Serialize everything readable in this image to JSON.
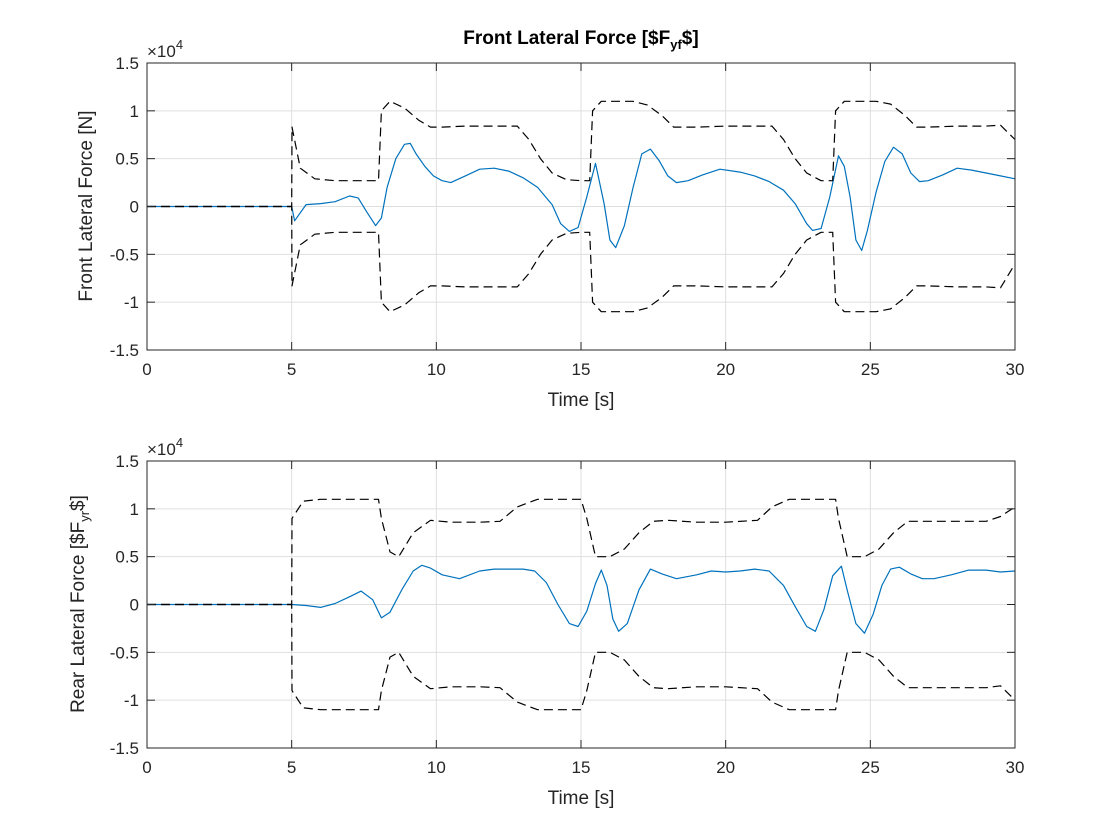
{
  "chart_data": [
    {
      "type": "line",
      "title": "Front Lateral Force [$F",
      "title_sub": "yf",
      "title_end": "$]",
      "xlabel": "Time [s]",
      "ylabel": "Front Lateral Force [N]",
      "ylabel_sub": "",
      "ylabel_end": "",
      "xlim": [
        0,
        30
      ],
      "ylim": [
        -15000,
        15000
      ],
      "y_exponent_label": "×10",
      "y_exponent_power": "4",
      "xticks": [
        0,
        5,
        10,
        15,
        20,
        25,
        30
      ],
      "xtick_labels": [
        "0",
        "5",
        "10",
        "15",
        "20",
        "25",
        "30"
      ],
      "yticks": [
        -1.5,
        -1,
        -0.5,
        0,
        0.5,
        1,
        1.5
      ],
      "ytick_labels": [
        "-1.5",
        "-1",
        "-0.5",
        "0",
        "0.5",
        "1",
        "1.5"
      ],
      "grid": true,
      "colors": {
        "signal": "#0072BD",
        "bounds": "#000000"
      },
      "series": [
        {
          "style": "solid",
          "x": [
            0,
            5,
            5.1,
            5.5,
            6,
            6.5,
            7,
            7.3,
            7.6,
            7.9,
            8.1,
            8.3,
            8.6,
            8.9,
            9.1,
            9.3,
            9.6,
            9.9,
            10.2,
            10.5,
            11,
            11.5,
            12,
            12.5,
            13,
            13.5,
            14,
            14.3,
            14.6,
            14.9,
            15.2,
            15.5,
            15.8,
            16,
            16.2,
            16.5,
            16.8,
            17.1,
            17.4,
            17.7,
            18,
            18.3,
            18.7,
            19.2,
            19.8,
            20.5,
            21,
            21.5,
            22,
            22.4,
            22.8,
            23,
            23.3,
            23.6,
            23.9,
            24.1,
            24.3,
            24.5,
            24.7,
            24.9,
            25.2,
            25.5,
            25.8,
            26.1,
            26.4,
            26.7,
            27,
            27.5,
            28,
            28.5,
            29,
            29.5,
            30
          ],
          "y": [
            0,
            0,
            -1500,
            200,
            300,
            500,
            1100,
            900,
            -600,
            -2000,
            -1200,
            2000,
            5000,
            6500,
            6600,
            5500,
            4200,
            3200,
            2700,
            2500,
            3200,
            3900,
            4000,
            3700,
            3000,
            2000,
            200,
            -1800,
            -2600,
            -2200,
            1000,
            4500,
            300,
            -3500,
            -4300,
            -2000,
            2000,
            5500,
            6000,
            4800,
            3200,
            2500,
            2700,
            3300,
            3900,
            3600,
            3200,
            2600,
            1700,
            300,
            -1800,
            -2500,
            -2300,
            1000,
            5300,
            4200,
            1000,
            -3500,
            -4600,
            -2500,
            1500,
            4700,
            6200,
            5500,
            3500,
            2600,
            2700,
            3300,
            4000,
            3800,
            3500,
            3200,
            2900
          ]
        },
        {
          "style": "dashed",
          "x": [
            0,
            5,
            5.01,
            5.3,
            5.8,
            6.5,
            7,
            7.6,
            8,
            8.1,
            8.4,
            8.9,
            9.4,
            9.8,
            10.2,
            11,
            12,
            12.8,
            13.2,
            13.6,
            14,
            14.5,
            15,
            15.3,
            15.4,
            15.7,
            16.2,
            16.8,
            17.3,
            17.8,
            18.2,
            19,
            20,
            21,
            21.6,
            22,
            22.4,
            22.8,
            23.3,
            23.7,
            23.8,
            24.1,
            24.6,
            25.2,
            25.7,
            26.2,
            26.6,
            27,
            28,
            29,
            29.5,
            30
          ],
          "y": [
            0,
            0,
            8300,
            4000,
            2900,
            2700,
            2700,
            2700,
            2700,
            10000,
            11000,
            10300,
            9000,
            8300,
            8300,
            8400,
            8400,
            8400,
            7000,
            5000,
            3500,
            2800,
            2700,
            2700,
            10000,
            11000,
            11000,
            11000,
            10600,
            9500,
            8300,
            8300,
            8400,
            8400,
            8400,
            7000,
            5000,
            3500,
            2700,
            2700,
            10000,
            11000,
            11000,
            11000,
            10700,
            9500,
            8300,
            8300,
            8400,
            8400,
            8500,
            7000
          ]
        },
        {
          "style": "dashed",
          "x": [
            0,
            5,
            5.01,
            5.3,
            5.8,
            6.5,
            7,
            7.6,
            8,
            8.1,
            8.4,
            8.9,
            9.4,
            9.8,
            10.2,
            11,
            12,
            12.8,
            13.2,
            13.6,
            14,
            14.5,
            15,
            15.3,
            15.4,
            15.7,
            16.2,
            16.8,
            17.3,
            17.8,
            18.2,
            19,
            20,
            21,
            21.6,
            22,
            22.4,
            22.8,
            23.3,
            23.7,
            23.8,
            24.1,
            24.6,
            25.2,
            25.7,
            26.2,
            26.6,
            27,
            28,
            29,
            29.5,
            30
          ],
          "y": [
            0,
            0,
            -8300,
            -4000,
            -2900,
            -2700,
            -2700,
            -2700,
            -2700,
            -10000,
            -11000,
            -10300,
            -9000,
            -8300,
            -8300,
            -8400,
            -8400,
            -8400,
            -7000,
            -5000,
            -3500,
            -2800,
            -2700,
            -2700,
            -10000,
            -11000,
            -11000,
            -11000,
            -10600,
            -9500,
            -8300,
            -8300,
            -8400,
            -8400,
            -8400,
            -7000,
            -5000,
            -3500,
            -2700,
            -2700,
            -10000,
            -11000,
            -11000,
            -11000,
            -10700,
            -9500,
            -8300,
            -8300,
            -8400,
            -8400,
            -8500,
            -6000
          ]
        }
      ]
    },
    {
      "type": "line",
      "title": "",
      "title_sub": "",
      "title_end": "",
      "xlabel": "Time [s]",
      "ylabel": "Rear Lateral Force [$F",
      "ylabel_sub": "yr",
      "ylabel_end": "$]",
      "xlim": [
        0,
        30
      ],
      "ylim": [
        -15000,
        15000
      ],
      "y_exponent_label": "×10",
      "y_exponent_power": "4",
      "xticks": [
        0,
        5,
        10,
        15,
        20,
        25,
        30
      ],
      "xtick_labels": [
        "0",
        "5",
        "10",
        "15",
        "20",
        "25",
        "30"
      ],
      "yticks": [
        -1.5,
        -1,
        -0.5,
        0,
        0.5,
        1,
        1.5
      ],
      "ytick_labels": [
        "-1.5",
        "-1",
        "-0.5",
        "0",
        "0.5",
        "1",
        "1.5"
      ],
      "grid": true,
      "colors": {
        "signal": "#0072BD",
        "bounds": "#000000"
      },
      "series": [
        {
          "style": "solid",
          "x": [
            0,
            5,
            5.5,
            6,
            6.5,
            7,
            7.4,
            7.8,
            8.1,
            8.4,
            8.8,
            9.2,
            9.5,
            9.8,
            10.2,
            10.8,
            11.5,
            12,
            12.5,
            13,
            13.4,
            13.8,
            14.2,
            14.6,
            14.9,
            15.2,
            15.5,
            15.7,
            15.9,
            16.1,
            16.3,
            16.6,
            17,
            17.4,
            17.8,
            18.3,
            19,
            19.5,
            20,
            20.5,
            21,
            21.5,
            22,
            22.4,
            22.8,
            23.1,
            23.4,
            23.7,
            24,
            24.2,
            24.5,
            24.8,
            25.1,
            25.4,
            25.7,
            26,
            26.4,
            26.8,
            27.2,
            27.8,
            28.4,
            29,
            29.5,
            30
          ],
          "y": [
            0,
            0,
            -100,
            -300,
            100,
            800,
            1400,
            500,
            -1400,
            -800,
            1500,
            3500,
            4100,
            3800,
            3100,
            2700,
            3500,
            3700,
            3700,
            3700,
            3500,
            2300,
            0,
            -2000,
            -2300,
            -700,
            2200,
            3600,
            2000,
            -1500,
            -2800,
            -2000,
            1500,
            3700,
            3200,
            2700,
            3100,
            3500,
            3400,
            3500,
            3700,
            3500,
            2000,
            -200,
            -2300,
            -2800,
            -500,
            3000,
            4000,
            1500,
            -2000,
            -3000,
            -1000,
            2000,
            3700,
            3900,
            3200,
            2700,
            2700,
            3100,
            3600,
            3600,
            3400,
            3500
          ]
        },
        {
          "style": "dashed",
          "x": [
            0,
            5,
            5.01,
            5.4,
            6,
            7,
            8,
            8.1,
            8.4,
            8.7,
            9.2,
            9.8,
            10.5,
            11.5,
            12.2,
            12.8,
            13.5,
            14.2,
            15,
            15.2,
            15.5,
            16,
            16.5,
            17,
            17.5,
            18,
            19,
            20,
            21.1,
            21.6,
            22.2,
            23,
            23.8,
            23.9,
            24.2,
            24.8,
            25.3,
            25.8,
            26.3,
            27,
            28,
            29,
            29.5,
            30
          ],
          "y": [
            0,
            0,
            9000,
            10800,
            11000,
            11000,
            11000,
            9000,
            5500,
            5000,
            7500,
            8800,
            8600,
            8600,
            8700,
            10200,
            11000,
            11000,
            11000,
            9000,
            5000,
            5000,
            5800,
            7500,
            8700,
            8800,
            8600,
            8600,
            8800,
            10200,
            11000,
            11000,
            11000,
            9000,
            5000,
            5000,
            5800,
            7500,
            8700,
            8700,
            8700,
            8700,
            9200,
            10200
          ]
        },
        {
          "style": "dashed",
          "x": [
            0,
            5,
            5.01,
            5.4,
            6,
            7,
            8,
            8.1,
            8.4,
            8.7,
            9.2,
            9.8,
            10.5,
            11.5,
            12.2,
            12.8,
            13.5,
            14.2,
            15,
            15.2,
            15.5,
            16,
            16.5,
            17,
            17.5,
            18,
            19,
            20,
            21.1,
            21.6,
            22.2,
            23,
            23.8,
            23.9,
            24.2,
            24.8,
            25.3,
            25.8,
            26.3,
            27,
            28,
            29,
            29.5,
            30
          ],
          "y": [
            0,
            0,
            -9000,
            -10800,
            -11000,
            -11000,
            -11000,
            -9000,
            -5500,
            -5000,
            -7500,
            -8800,
            -8600,
            -8600,
            -8700,
            -10200,
            -11000,
            -11000,
            -11000,
            -9000,
            -5000,
            -5000,
            -5800,
            -7500,
            -8700,
            -8800,
            -8600,
            -8600,
            -8800,
            -10200,
            -11000,
            -11000,
            -11000,
            -9000,
            -5000,
            -5000,
            -5800,
            -7500,
            -8700,
            -8700,
            -8700,
            -8700,
            -8500,
            -10000
          ]
        }
      ]
    }
  ]
}
